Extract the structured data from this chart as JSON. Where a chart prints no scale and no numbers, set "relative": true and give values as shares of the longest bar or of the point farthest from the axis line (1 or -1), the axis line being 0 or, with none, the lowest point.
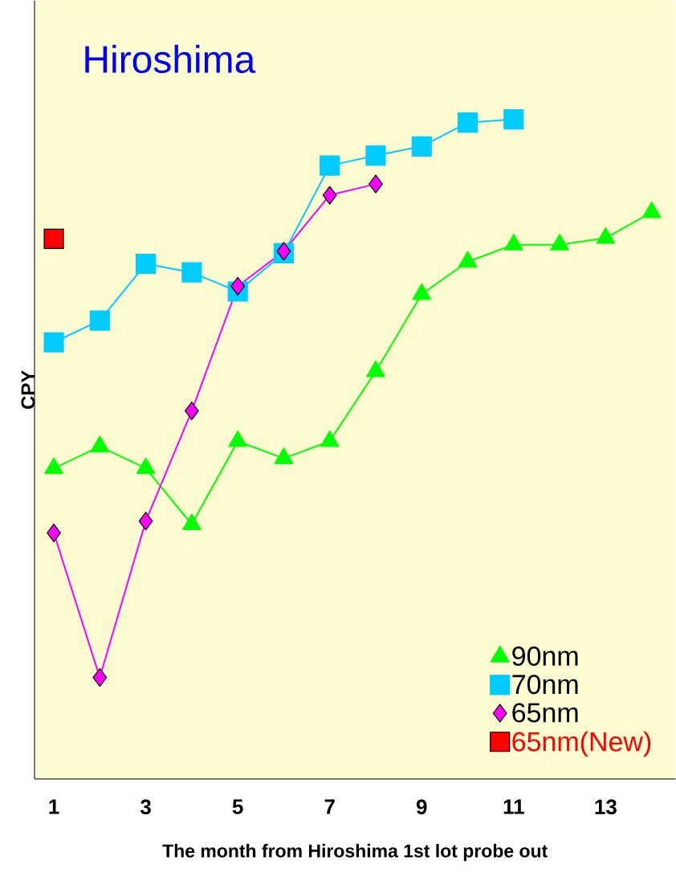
{
  "chart_data": {
    "type": "line",
    "title": "Hiroshima",
    "xlabel": "The month from Hiroshima 1st lot probe out",
    "ylabel": "CPY",
    "relative": true,
    "categories": [
      "1",
      null,
      "3",
      null,
      "5",
      null,
      "7",
      null,
      "9",
      null,
      "11",
      null,
      "13",
      null
    ],
    "series": [
      {
        "name": "90nm",
        "color": "#00ff00",
        "marker": "triangle",
        "values": [
          0.471,
          0.504,
          0.471,
          0.386,
          0.512,
          0.486,
          0.512,
          0.618,
          0.735,
          0.784,
          0.81,
          0.81,
          0.82,
          0.859
        ]
      },
      {
        "name": "70nm",
        "color": "#00ccff",
        "marker": "square",
        "values": [
          0.662,
          0.695,
          0.781,
          0.768,
          0.739,
          0.797,
          0.93,
          0.945,
          0.959,
          0.995,
          1.0,
          null,
          null,
          null
        ]
      },
      {
        "name": "65nm",
        "color": "#ff00ff",
        "marker": "diamond",
        "values": [
          0.373,
          0.154,
          0.391,
          0.558,
          0.747,
          0.8,
          0.885,
          0.902,
          null,
          null,
          null,
          null,
          null,
          null
        ]
      },
      {
        "name": "65nm(New)",
        "type": "scatter",
        "color": "#ff0000",
        "marker": "square",
        "values": [
          0.819,
          null,
          null,
          null,
          null,
          null,
          null,
          null,
          null,
          null,
          null,
          null,
          null,
          null
        ]
      }
    ],
    "legend": "bottom right",
    "grid": false
  }
}
